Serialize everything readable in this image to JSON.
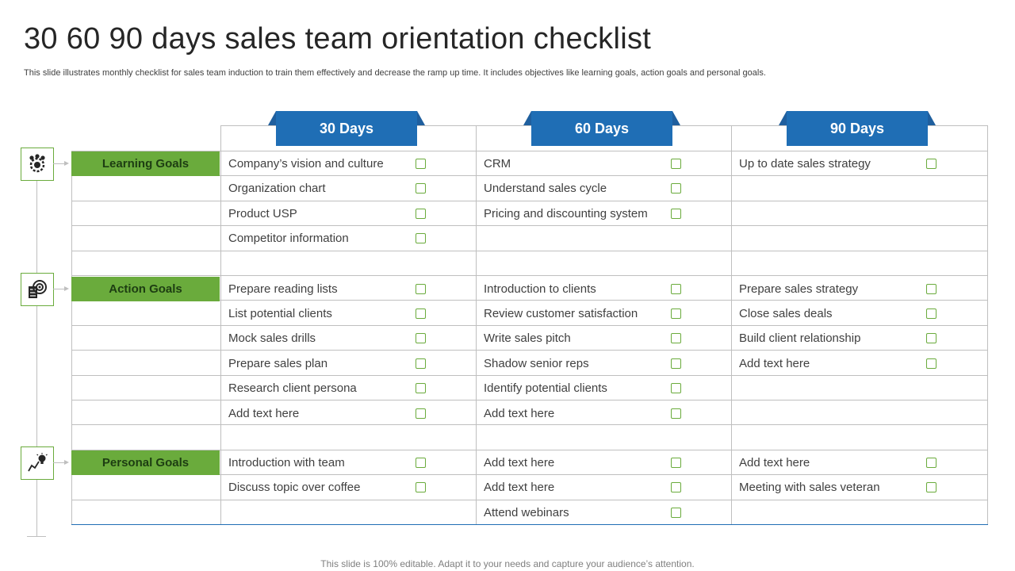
{
  "title": "30 60 90 days sales team orientation checklist",
  "subtitle": "This slide illustrates monthly checklist for sales team induction to train them effectively and decrease the ramp up time. It includes objectives like learning goals, action goals and personal goals.",
  "footer": "This slide is 100% editable. Adapt it to your needs and capture your audience’s attention.",
  "colors": {
    "accent_green": "#6aab3c",
    "header_blue": "#1f6eb5",
    "grid": "#bfbfbf"
  },
  "days": [
    "30 Days",
    "60 Days",
    "90 Days"
  ],
  "icons": [
    "team-gear-icon",
    "target-checklist-icon",
    "growth-bulb-icon"
  ],
  "goals": [
    {
      "label": "Learning Goals",
      "columns": [
        [
          "Company’s vision and culture",
          "Organization chart",
          "Product USP",
          "Competitor information"
        ],
        [
          "CRM",
          "Understand sales cycle",
          "Pricing and discounting system"
        ],
        [
          "Up to date sales strategy"
        ]
      ]
    },
    {
      "label": "Action Goals",
      "columns": [
        [
          "Prepare reading lists",
          "List potential clients",
          "Mock sales drills",
          "Prepare sales plan",
          "Research client persona",
          "Add text here"
        ],
        [
          "Introduction to clients",
          "Review customer satisfaction",
          "Write sales pitch",
          "Shadow senior reps",
          "Identify potential clients",
          "Add text here"
        ],
        [
          "Prepare sales strategy",
          "Close sales deals",
          "Build client relationship",
          "Add text here"
        ]
      ]
    },
    {
      "label": "Personal Goals",
      "columns": [
        [
          "Introduction with team",
          "Discuss topic over coffee"
        ],
        [
          "Add text here",
          "Add text here",
          "Attend webinars"
        ],
        [
          "Add text here",
          "Meeting with sales veteran"
        ]
      ]
    }
  ]
}
